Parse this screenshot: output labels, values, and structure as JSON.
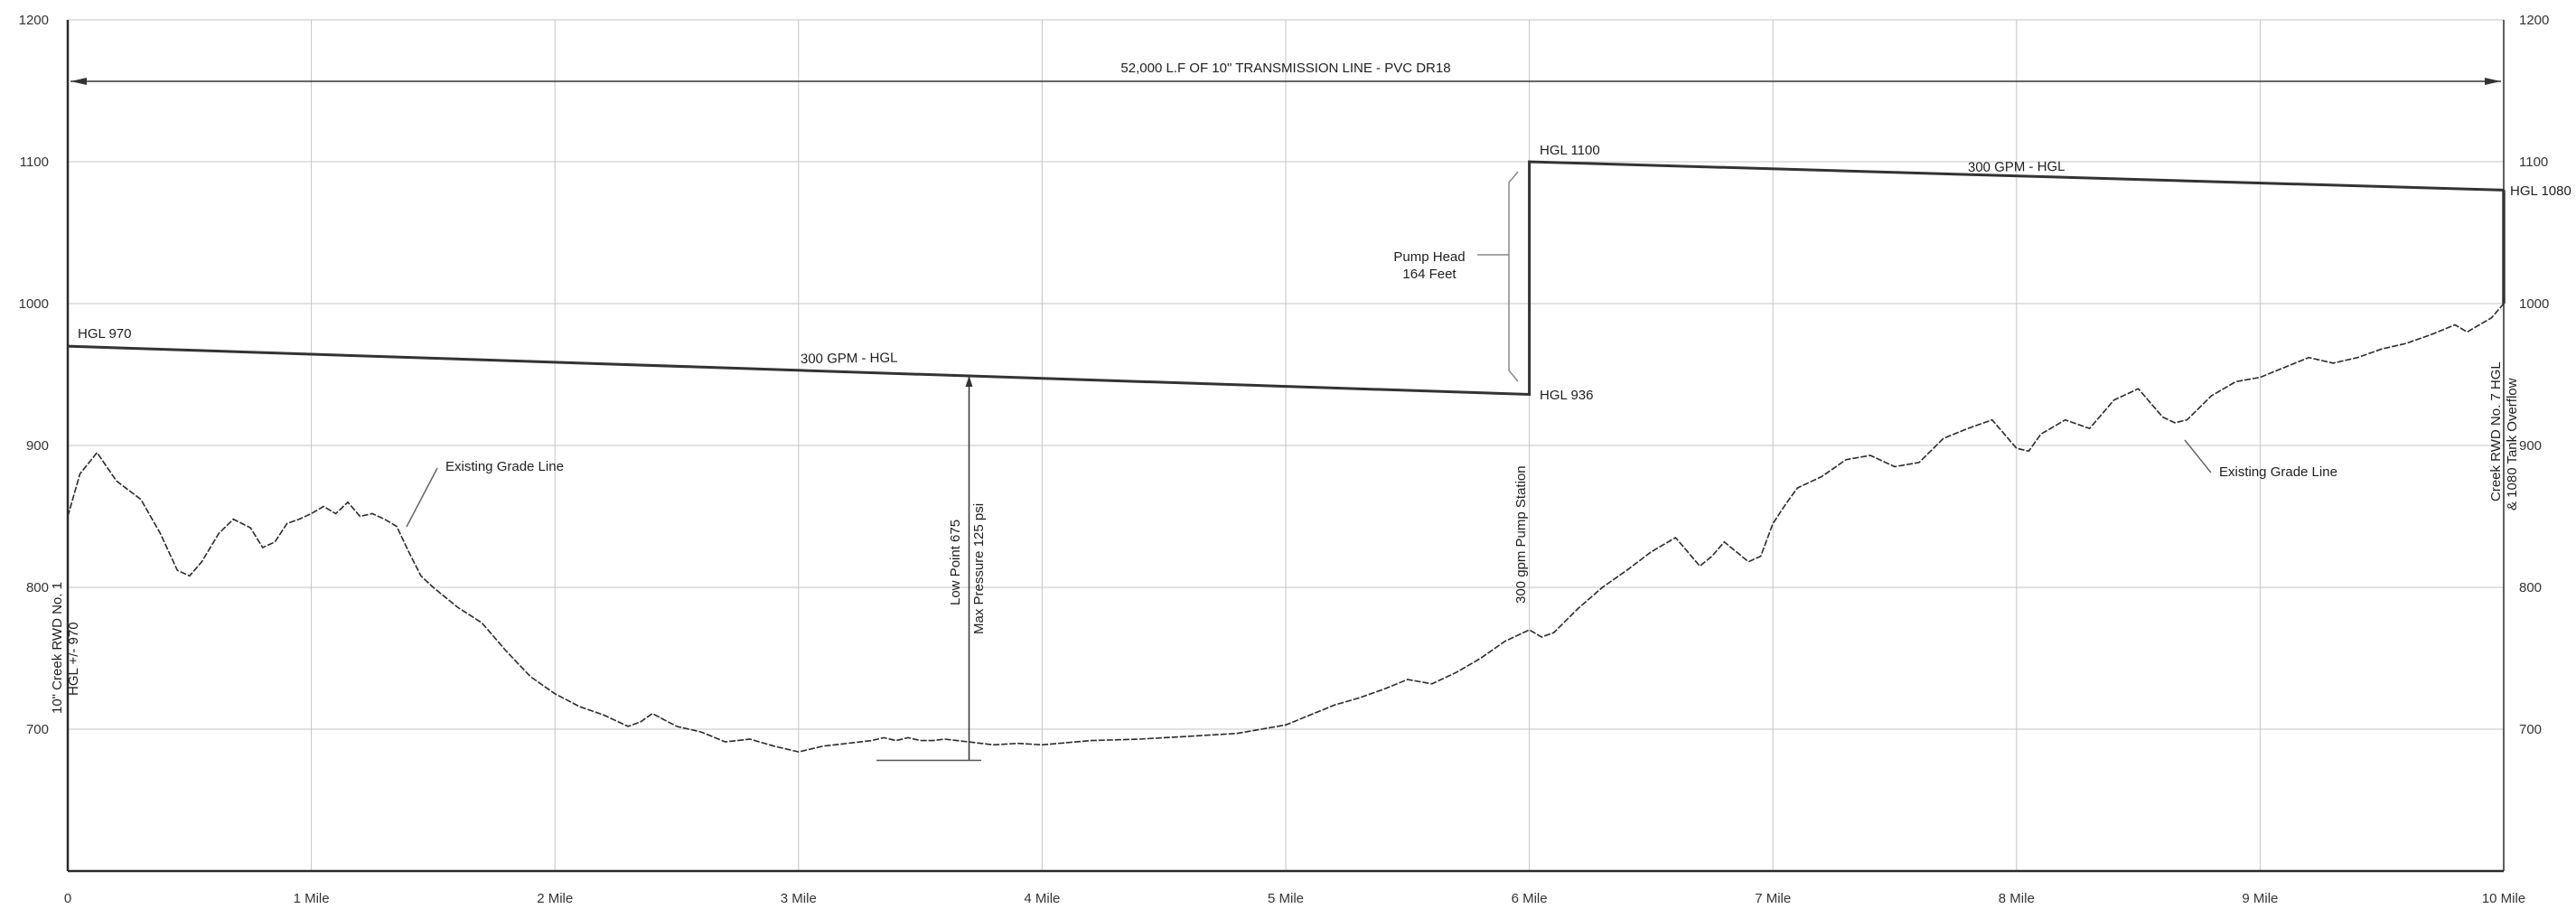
{
  "chart_data": {
    "type": "line",
    "title": "52,000 L.F OF 10\" TRANSMISSION LINE - PVC DR18",
    "xlabel": "",
    "ylabel": "",
    "xlim": [
      0,
      10
    ],
    "ylim": [
      600,
      1200
    ],
    "grid": true,
    "x_tick_values": [
      0,
      1,
      2,
      3,
      4,
      5,
      6,
      7,
      8,
      9,
      10
    ],
    "x_tick_labels": [
      "0",
      "1 Mile",
      "2 Mile",
      "3 Mile",
      "4 Mile",
      "5 Mile",
      "6 Mile",
      "7 Mile",
      "8 Mile",
      "9 Mile",
      "10 Mile"
    ],
    "y_ticks": [
      700,
      800,
      900,
      1000,
      1100,
      1200
    ],
    "y_tick_labels": [
      "700",
      "800",
      "900",
      "1000",
      "1100",
      "1200"
    ],
    "series": [
      {
        "name": "Existing Grade Line",
        "x": [
          0,
          0.05,
          0.12,
          0.2,
          0.3,
          0.38,
          0.45,
          0.5,
          0.55,
          0.62,
          0.68,
          0.75,
          0.8,
          0.85,
          0.9,
          0.95,
          1.0,
          1.05,
          1.1,
          1.15,
          1.2,
          1.25,
          1.3,
          1.35,
          1.4,
          1.45,
          1.5,
          1.6,
          1.7,
          1.8,
          1.9,
          2.0,
          2.1,
          2.2,
          2.3,
          2.35,
          2.4,
          2.5,
          2.6,
          2.7,
          2.8,
          2.9,
          3.0,
          3.1,
          3.2,
          3.3,
          3.35,
          3.4,
          3.45,
          3.5,
          3.55,
          3.6,
          3.7,
          3.8,
          3.9,
          4.0,
          4.2,
          4.4,
          4.6,
          4.8,
          5.0,
          5.1,
          5.2,
          5.3,
          5.4,
          5.5,
          5.6,
          5.7,
          5.8,
          5.9,
          6.0,
          6.05,
          6.1,
          6.2,
          6.3,
          6.4,
          6.5,
          6.6,
          6.7,
          6.75,
          6.8,
          6.85,
          6.9,
          6.95,
          7.0,
          7.05,
          7.1,
          7.2,
          7.3,
          7.4,
          7.5,
          7.6,
          7.7,
          7.8,
          7.9,
          8.0,
          8.05,
          8.1,
          8.2,
          8.3,
          8.4,
          8.5,
          8.6,
          8.65,
          8.7,
          8.8,
          8.9,
          9.0,
          9.1,
          9.2,
          9.3,
          9.4,
          9.5,
          9.6,
          9.7,
          9.8,
          9.85,
          9.9,
          9.95,
          10.0
        ],
        "values": [
          850,
          880,
          895,
          875,
          862,
          838,
          812,
          808,
          818,
          838,
          848,
          842,
          828,
          832,
          845,
          848,
          852,
          857,
          852,
          860,
          850,
          852,
          848,
          843,
          825,
          808,
          800,
          786,
          775,
          755,
          737,
          725,
          716,
          710,
          702,
          705,
          711,
          702,
          698,
          691,
          693,
          688,
          684,
          688,
          690,
          692,
          694,
          692,
          694,
          692,
          692,
          693,
          691,
          689,
          690,
          689,
          692,
          693,
          695,
          697,
          703,
          710,
          717,
          722,
          728,
          735,
          732,
          740,
          750,
          762,
          770,
          765,
          768,
          785,
          800,
          812,
          825,
          835,
          815,
          822,
          832,
          825,
          818,
          822,
          845,
          858,
          870,
          878,
          890,
          893,
          885,
          888,
          905,
          912,
          918,
          898,
          896,
          908,
          918,
          912,
          932,
          940,
          920,
          916,
          918,
          935,
          945,
          948,
          955,
          962,
          958,
          962,
          968,
          972,
          978,
          985,
          980,
          985,
          990,
          1000
        ]
      },
      {
        "name": "300 GPM - HGL",
        "x": [
          0,
          6.0,
          6.0,
          10.0
        ],
        "values": [
          970,
          936,
          1100,
          1080
        ]
      }
    ],
    "annotations": {
      "hgl_970": "HGL 970",
      "hgl_936": "HGL 936",
      "hgl_1100": "HGL 1100",
      "hgl_1080": "HGL 1080",
      "hgl_left_label": "300 GPM - HGL",
      "hgl_right_label": "300 GPM - HGL",
      "pump_head_line1": "Pump Head",
      "pump_head_line2": "164 Feet",
      "existing_grade_left": "Existing Grade Line",
      "existing_grade_right": "Existing Grade Line",
      "low_point_line1": "Low Point 675",
      "low_point_line2": "Max Pressure 125 psi",
      "pump_station": "300 gpm Pump Station",
      "left_end_line1": "10\" Creek RWD No. 1",
      "left_end_line2": "HGL +/- 970",
      "right_end_line1": "Creek RWD No. 7 HGL",
      "right_end_line2": "& 1080 Tank Overflow"
    },
    "legend": "none"
  }
}
